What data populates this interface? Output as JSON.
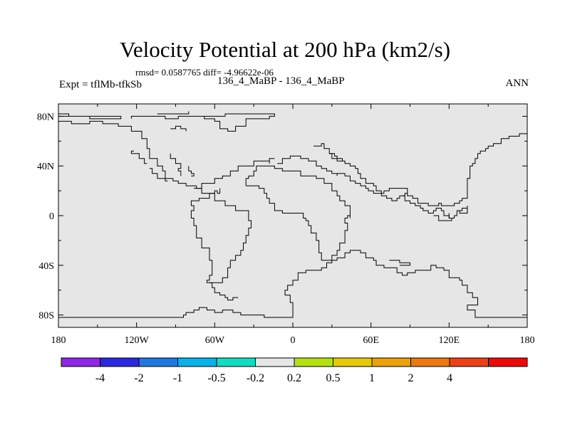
{
  "title": "Velocity Potential at 200 hPa (km2/s)",
  "stats": "rmsd= 0.0587765  diff= -4.96622e-06",
  "experiment": "Expt = tflMb-tfkSb",
  "comparison": "136_4_MaBP - 136_4_MaBP",
  "season": "ANN",
  "map": {
    "background_color": "#e6e6e6",
    "coastline_color": "#000000",
    "lon_range": [
      -180,
      180
    ],
    "lat_range": [
      -90,
      90
    ],
    "lat_ticks": [
      {
        "value": 80,
        "label": "80N"
      },
      {
        "value": 40,
        "label": "40N"
      },
      {
        "value": 0,
        "label": "0"
      },
      {
        "value": -40,
        "label": "40S"
      },
      {
        "value": -80,
        "label": "80S"
      }
    ],
    "lon_ticks": [
      {
        "value": -180,
        "label": "180"
      },
      {
        "value": -120,
        "label": "120W"
      },
      {
        "value": -60,
        "label": "60W"
      },
      {
        "value": 0,
        "label": "0"
      },
      {
        "value": 60,
        "label": "60E"
      },
      {
        "value": 120,
        "label": "120E"
      },
      {
        "value": 180,
        "label": "180"
      }
    ],
    "coastlines": [
      [
        [
          -180,
          82
        ],
        [
          -172,
          82
        ],
        [
          -172,
          80
        ],
        [
          -156,
          80
        ],
        [
          -156,
          78
        ],
        [
          -132,
          78
        ],
        [
          -132,
          80
        ],
        [
          -180,
          80
        ]
      ],
      [
        [
          -180,
          76
        ],
        [
          -170,
          76
        ],
        [
          -170,
          74
        ],
        [
          -162,
          74
        ],
        [
          -156,
          76
        ],
        [
          -146,
          76
        ],
        [
          -146,
          74
        ],
        [
          -134,
          72
        ],
        [
          -124,
          68
        ],
        [
          -116,
          62
        ],
        [
          -112,
          54
        ],
        [
          -110,
          50
        ],
        [
          -110,
          46
        ],
        [
          -104,
          40
        ],
        [
          -100,
          36
        ],
        [
          -98,
          30
        ],
        [
          -92,
          28
        ],
        [
          -88,
          26
        ],
        [
          -82,
          24
        ],
        [
          -74,
          22
        ],
        [
          -70,
          26
        ],
        [
          -62,
          26
        ],
        [
          -60,
          30
        ],
        [
          -54,
          32
        ],
        [
          -48,
          36
        ],
        [
          -42,
          40
        ],
        [
          -34,
          40
        ],
        [
          -30,
          44
        ],
        [
          -20,
          44
        ],
        [
          -18,
          42
        ],
        [
          -18,
          46
        ],
        [
          -14,
          46
        ]
      ],
      [
        [
          -124,
          78
        ],
        [
          -124,
          80
        ],
        [
          -108,
          80
        ],
        [
          -98,
          78
        ],
        [
          -88,
          80
        ],
        [
          -72,
          80
        ],
        [
          -52,
          82
        ],
        [
          -22,
          82
        ],
        [
          -14,
          80
        ],
        [
          -18,
          78
        ],
        [
          -36,
          72
        ],
        [
          -44,
          68
        ],
        [
          -50,
          70
        ],
        [
          -56,
          76
        ],
        [
          -60,
          78
        ],
        [
          -68,
          80
        ]
      ],
      [
        [
          -104,
          82
        ],
        [
          -92,
          82
        ],
        [
          -80,
          84
        ]
      ],
      [
        [
          -94,
          70
        ],
        [
          -90,
          72
        ],
        [
          -86,
          70
        ],
        [
          -82,
          68
        ]
      ],
      [
        [
          -94,
          50
        ],
        [
          -94,
          46
        ],
        [
          -90,
          46
        ],
        [
          -90,
          42
        ],
        [
          -86,
          42
        ],
        [
          -86,
          38
        ],
        [
          -88,
          36
        ],
        [
          -86,
          32
        ]
      ],
      [
        [
          -78,
          32
        ],
        [
          -76,
          34
        ],
        [
          -78,
          36
        ],
        [
          -80,
          38
        ],
        [
          -80,
          40
        ]
      ],
      [
        [
          -76,
          22
        ],
        [
          -74,
          22
        ],
        [
          -70,
          18
        ],
        [
          -64,
          18
        ],
        [
          -60,
          20
        ],
        [
          -58,
          18
        ],
        [
          -56,
          22
        ]
      ],
      [
        [
          -64,
          18
        ],
        [
          -60,
          12
        ],
        [
          -52,
          8
        ],
        [
          -44,
          4
        ],
        [
          -34,
          -4
        ],
        [
          -32,
          -10
        ],
        [
          -34,
          -16
        ],
        [
          -36,
          -22
        ],
        [
          -38,
          -28
        ],
        [
          -40,
          -32
        ],
        [
          -44,
          -36
        ],
        [
          -48,
          -42
        ],
        [
          -50,
          -50
        ],
        [
          -54,
          -54
        ],
        [
          -60,
          -54
        ],
        [
          -66,
          -52
        ],
        [
          -64,
          -48
        ],
        [
          -62,
          -44
        ],
        [
          -62,
          -36
        ],
        [
          -64,
          -26
        ],
        [
          -70,
          -18
        ],
        [
          -74,
          -8
        ],
        [
          -76,
          -2
        ],
        [
          -78,
          4
        ],
        [
          -76,
          8
        ],
        [
          -78,
          12
        ],
        [
          -72,
          14
        ],
        [
          -68,
          14
        ],
        [
          -64,
          18
        ]
      ],
      [
        [
          -36,
          24
        ],
        [
          -30,
          24
        ],
        [
          -26,
          22
        ],
        [
          -22,
          18
        ],
        [
          -20,
          14
        ],
        [
          -18,
          10
        ],
        [
          -14,
          4
        ],
        [
          -8,
          2
        ],
        [
          2,
          2
        ],
        [
          8,
          -2
        ],
        [
          10,
          -4
        ],
        [
          12,
          -8
        ],
        [
          14,
          -14
        ],
        [
          18,
          -20
        ],
        [
          20,
          -30
        ],
        [
          22,
          -36
        ],
        [
          26,
          -36
        ],
        [
          30,
          -32
        ],
        [
          34,
          -28
        ],
        [
          36,
          -22
        ],
        [
          40,
          -18
        ],
        [
          40,
          -12
        ],
        [
          42,
          -6
        ],
        [
          40,
          -2
        ],
        [
          42,
          0
        ],
        [
          44,
          -2
        ],
        [
          44,
          8
        ],
        [
          40,
          12
        ],
        [
          36,
          16
        ],
        [
          34,
          20
        ],
        [
          30,
          26
        ],
        [
          24,
          30
        ],
        [
          18,
          32
        ],
        [
          10,
          32
        ],
        [
          6,
          36
        ],
        [
          -4,
          36
        ],
        [
          -8,
          38
        ],
        [
          -14,
          40
        ],
        [
          -20,
          40
        ],
        [
          -28,
          36
        ],
        [
          -30,
          32
        ],
        [
          -34,
          30
        ],
        [
          -36,
          24
        ]
      ],
      [
        [
          -12,
          42
        ],
        [
          -8,
          46
        ],
        [
          -2,
          48
        ],
        [
          6,
          46
        ],
        [
          12,
          44
        ],
        [
          18,
          40
        ],
        [
          22,
          38
        ],
        [
          26,
          36
        ],
        [
          30,
          34
        ],
        [
          34,
          32
        ]
      ],
      [
        [
          16,
          56
        ],
        [
          22,
          58
        ],
        [
          24,
          54
        ],
        [
          28,
          50
        ],
        [
          32,
          48
        ],
        [
          34,
          46
        ],
        [
          38,
          44
        ],
        [
          40,
          42
        ],
        [
          44,
          40
        ],
        [
          48,
          38
        ],
        [
          50,
          34
        ],
        [
          52,
          30
        ],
        [
          56,
          26
        ],
        [
          62,
          24
        ],
        [
          64,
          20
        ],
        [
          68,
          16
        ],
        [
          72,
          14
        ],
        [
          76,
          12
        ],
        [
          80,
          14
        ],
        [
          82,
          16
        ],
        [
          86,
          18
        ],
        [
          88,
          16
        ],
        [
          92,
          14
        ],
        [
          96,
          10
        ],
        [
          100,
          10
        ],
        [
          104,
          8
        ],
        [
          108,
          8
        ],
        [
          112,
          10
        ],
        [
          114,
          8
        ],
        [
          120,
          8
        ],
        [
          124,
          10
        ],
        [
          128,
          12
        ],
        [
          130,
          14
        ],
        [
          134,
          18
        ],
        [
          134,
          24
        ],
        [
          134,
          30
        ],
        [
          136,
          34
        ],
        [
          136,
          40
        ],
        [
          138,
          42
        ],
        [
          140,
          46
        ],
        [
          142,
          50
        ],
        [
          144,
          52
        ],
        [
          148,
          54
        ],
        [
          150,
          56
        ],
        [
          154,
          58
        ],
        [
          160,
          58
        ],
        [
          160,
          62
        ],
        [
          166,
          64
        ],
        [
          170,
          64
        ],
        [
          174,
          66
        ],
        [
          180,
          66
        ]
      ],
      [
        [
          34,
          34
        ],
        [
          40,
          32
        ],
        [
          44,
          28
        ],
        [
          48,
          26
        ],
        [
          52,
          24
        ],
        [
          56,
          22
        ],
        [
          58,
          20
        ],
        [
          62,
          18
        ],
        [
          66,
          18
        ],
        [
          70,
          20
        ],
        [
          74,
          22
        ],
        [
          78,
          22
        ],
        [
          82,
          22
        ],
        [
          86,
          22
        ],
        [
          88,
          18
        ]
      ],
      [
        [
          28,
          50
        ],
        [
          30,
          46
        ],
        [
          34,
          44
        ],
        [
          38,
          44
        ]
      ],
      [
        [
          -110,
          38
        ],
        [
          -108,
          34
        ],
        [
          -104,
          34
        ],
        [
          -104,
          30
        ],
        [
          -100,
          30
        ],
        [
          -98,
          28
        ],
        [
          -96,
          28
        ]
      ],
      [
        [
          -122,
          52
        ],
        [
          -124,
          50
        ],
        [
          -120,
          50
        ],
        [
          -118,
          46
        ],
        [
          -116,
          46
        ],
        [
          -114,
          42
        ],
        [
          -112,
          42
        ]
      ],
      [
        [
          84,
          16
        ],
        [
          86,
          12
        ],
        [
          90,
          10
        ],
        [
          94,
          8
        ],
        [
          98,
          6
        ],
        [
          100,
          4
        ],
        [
          104,
          2
        ],
        [
          108,
          4
        ],
        [
          110,
          6
        ],
        [
          114,
          4
        ],
        [
          116,
          0
        ],
        [
          120,
          -2
        ],
        [
          124,
          0
        ],
        [
          126,
          4
        ],
        [
          130,
          6
        ],
        [
          134,
          8
        ]
      ],
      [
        [
          108,
          0
        ],
        [
          112,
          -4
        ],
        [
          118,
          -4
        ],
        [
          122,
          -2
        ],
        [
          120,
          2
        ]
      ],
      [
        [
          126,
          4
        ],
        [
          128,
          2
        ],
        [
          134,
          2
        ],
        [
          134,
          6
        ]
      ],
      [
        [
          16,
          -44
        ],
        [
          22,
          -42
        ],
        [
          26,
          -38
        ],
        [
          30,
          -36
        ],
        [
          34,
          -34
        ],
        [
          40,
          -30
        ],
        [
          44,
          -28
        ],
        [
          52,
          -30
        ],
        [
          56,
          -34
        ],
        [
          62,
          -36
        ],
        [
          64,
          -40
        ],
        [
          70,
          -42
        ],
        [
          76,
          -42
        ],
        [
          80,
          -46
        ],
        [
          84,
          -48
        ],
        [
          88,
          -46
        ],
        [
          94,
          -44
        ],
        [
          100,
          -44
        ],
        [
          106,
          -40
        ],
        [
          110,
          -42
        ],
        [
          116,
          -44
        ],
        [
          120,
          -50
        ],
        [
          128,
          -52
        ],
        [
          130,
          -56
        ],
        [
          134,
          -62
        ],
        [
          138,
          -66
        ],
        [
          142,
          -66
        ],
        [
          142,
          -72
        ],
        [
          136,
          -72
        ],
        [
          134,
          -76
        ],
        [
          140,
          -78
        ],
        [
          140,
          -82
        ],
        [
          180,
          -82
        ]
      ],
      [
        [
          74,
          -36
        ],
        [
          80,
          -36
        ],
        [
          82,
          -38
        ],
        [
          90,
          -38
        ],
        [
          90,
          -40
        ],
        [
          82,
          -40
        ]
      ],
      [
        [
          -180,
          -82
        ],
        [
          -100,
          -82
        ],
        [
          -84,
          -80
        ],
        [
          -82,
          -78
        ],
        [
          -76,
          -76
        ],
        [
          -72,
          -74
        ],
        [
          -66,
          -76
        ],
        [
          -60,
          -78
        ],
        [
          -54,
          -76
        ],
        [
          -46,
          -78
        ],
        [
          -40,
          -80
        ],
        [
          -34,
          -80
        ],
        [
          -28,
          -80
        ],
        [
          -22,
          -82
        ],
        [
          0,
          -82
        ],
        [
          0,
          -70
        ],
        [
          -2,
          -64
        ],
        [
          -6,
          -60
        ],
        [
          -4,
          -56
        ],
        [
          0,
          -52
        ],
        [
          4,
          -46
        ],
        [
          10,
          -44
        ],
        [
          14,
          -44
        ],
        [
          16,
          -44
        ]
      ],
      [
        [
          -64,
          -54
        ],
        [
          -62,
          -58
        ],
        [
          -60,
          -62
        ],
        [
          -56,
          -64
        ],
        [
          -52,
          -66
        ],
        [
          -50,
          -68
        ],
        [
          -46,
          -66
        ],
        [
          -42,
          -66
        ]
      ]
    ]
  },
  "colorbar": {
    "colors": [
      "#8c28e6",
      "#2c28e0",
      "#1e78e0",
      "#0ab2e8",
      "#12dcc0",
      "#e6e6e6",
      "#b4e012",
      "#e6c80a",
      "#eba10a",
      "#eb7812",
      "#eb4018",
      "#eb0a0a"
    ],
    "labels": [
      "-4",
      "-2",
      "-1",
      "-0.5",
      "-0.2",
      "0.2",
      "0.5",
      "1",
      "2",
      "4"
    ]
  }
}
